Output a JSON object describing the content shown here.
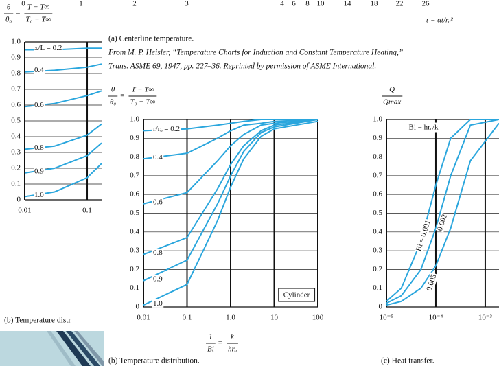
{
  "top_strip": {
    "ticks": [
      0,
      1,
      2,
      3,
      4,
      6,
      8,
      10,
      14,
      18,
      22,
      26
    ],
    "label": "τ = αt/rₒ²"
  },
  "captions": {
    "a": "(a) Centerline temperature.",
    "credit_1": "From M. P. Heisler, “Temperature Charts for Induction and Constant Temperature Heating,”",
    "credit_2": "Trans. ASME 69, 1947, pp. 227–36. Reprinted by permission of ASME International.",
    "b_left": "(b) Temperature distr",
    "b": "(b) Temperature distribution.",
    "c": "(c) Heat transfer."
  },
  "chart_data": [
    {
      "type": "line",
      "xscale": "log",
      "grid": true,
      "ylabel": {
        "numerator": "θ",
        "denominator": "θ₀",
        "relation": "=",
        "rhs_numerator": "T − T∞",
        "rhs_denominator": "T₀ − T∞"
      },
      "x": [
        0.01,
        0.03,
        0.1,
        0.17
      ],
      "xlim": [
        0.01,
        0.17
      ],
      "xticks": [
        0.01,
        0.1
      ],
      "ylim": [
        0,
        1
      ],
      "yticks": [
        0,
        0.1,
        0.2,
        0.3,
        0.4,
        0.5,
        0.6,
        0.7,
        0.8,
        0.9,
        {
          "value": 1,
          "label": "1.0"
        }
      ],
      "series": [
        {
          "name": "x/L = 0.2",
          "color": "#2aa6dd",
          "values": [
            0.95,
            0.95,
            0.96,
            0.96
          ]
        },
        {
          "name": "0.4",
          "color": "#2aa6dd",
          "values": [
            0.81,
            0.82,
            0.84,
            0.86
          ]
        },
        {
          "name": "0.6",
          "color": "#2aa6dd",
          "values": [
            0.59,
            0.61,
            0.66,
            0.69
          ]
        },
        {
          "name": "0.8",
          "color": "#2aa6dd",
          "values": [
            0.32,
            0.34,
            0.41,
            0.48
          ]
        },
        {
          "name": "0.9",
          "color": "#2aa6dd",
          "values": [
            0.17,
            0.2,
            0.28,
            0.36
          ]
        },
        {
          "name": "1.0",
          "color": "#2aa6dd",
          "values": [
            0.02,
            0.05,
            0.14,
            0.23
          ]
        }
      ]
    },
    {
      "type": "line",
      "xscale": "log",
      "grid": true,
      "ylabel": {
        "numerator": "θ",
        "denominator": "θ₀",
        "relation": "=",
        "rhs_numerator": "T − T∞",
        "rhs_denominator": "T₀ − T∞"
      },
      "xlabel": {
        "numerator": "1",
        "denominator": "Bi",
        "relation": "=",
        "rhs_numerator": "k",
        "rhs_denominator": "hrₒ"
      },
      "annotation": "Cylinder",
      "x": [
        0.01,
        0.1,
        0.5,
        1,
        2,
        5,
        10,
        100
      ],
      "xlim": [
        0.01,
        100
      ],
      "xticks": [
        0.01,
        0.1,
        {
          "value": 1,
          "label": "1.0"
        },
        10,
        100
      ],
      "ylim": [
        0,
        1
      ],
      "yticks": [
        0,
        0.1,
        0.2,
        0.3,
        0.4,
        0.5,
        0.6,
        0.7,
        0.8,
        0.9,
        {
          "value": 1,
          "label": "1.0"
        }
      ],
      "series": [
        {
          "name": "r/rₒ = 0.2",
          "color": "#2aa6dd",
          "values": [
            0.94,
            0.95,
            0.97,
            0.98,
            0.99,
            1.0,
            1.0,
            1.0
          ]
        },
        {
          "name": "0.4",
          "color": "#2aa6dd",
          "values": [
            0.79,
            0.82,
            0.9,
            0.94,
            0.97,
            0.98,
            0.99,
            1.0
          ]
        },
        {
          "name": "0.6",
          "color": "#2aa6dd",
          "values": [
            0.55,
            0.61,
            0.78,
            0.86,
            0.92,
            0.97,
            0.98,
            1.0
          ]
        },
        {
          "name": "0.8",
          "color": "#2aa6dd",
          "values": [
            0.28,
            0.37,
            0.63,
            0.76,
            0.86,
            0.94,
            0.97,
            1.0
          ]
        },
        {
          "name": "0.9",
          "color": "#2aa6dd",
          "values": [
            0.14,
            0.25,
            0.55,
            0.7,
            0.83,
            0.93,
            0.96,
            1.0
          ]
        },
        {
          "name": "1.0",
          "color": "#2aa6dd",
          "values": [
            0.01,
            0.12,
            0.46,
            0.64,
            0.79,
            0.91,
            0.95,
            0.99
          ]
        }
      ]
    },
    {
      "type": "line",
      "xscale": "log",
      "grid": true,
      "ylabel": {
        "numerator": "Q",
        "denominator": "Qmax"
      },
      "annotation": "Bi = hrₒ/k",
      "x": [
        1e-05,
        2e-05,
        5e-05,
        0.0001,
        0.0002,
        0.0005,
        0.0019
      ],
      "xlim": [
        1e-05,
        0.0019
      ],
      "xticks": [
        {
          "value": 1e-05,
          "label": "10⁻⁵"
        },
        {
          "value": 0.0001,
          "label": "10⁻⁴"
        },
        {
          "value": 0.001,
          "label": "10⁻³"
        }
      ],
      "ylim": [
        0,
        1
      ],
      "yticks": [
        0,
        0.1,
        0.2,
        0.3,
        0.4,
        0.5,
        0.6,
        0.7,
        0.8,
        0.9,
        {
          "value": 1,
          "label": "1.0"
        }
      ],
      "series": [
        {
          "name": "Bi = 0.001",
          "color": "#2aa6dd",
          "values": [
            0.03,
            0.1,
            0.35,
            0.65,
            0.9,
            1.0,
            1.0
          ]
        },
        {
          "name": "0.002",
          "color": "#2aa6dd",
          "values": [
            0.02,
            0.06,
            0.2,
            0.42,
            0.7,
            0.97,
            1.0
          ]
        },
        {
          "name": "0.005",
          "color": "#2aa6dd",
          "values": [
            0.01,
            0.03,
            0.1,
            0.22,
            0.42,
            0.78,
            0.98
          ]
        }
      ]
    }
  ]
}
